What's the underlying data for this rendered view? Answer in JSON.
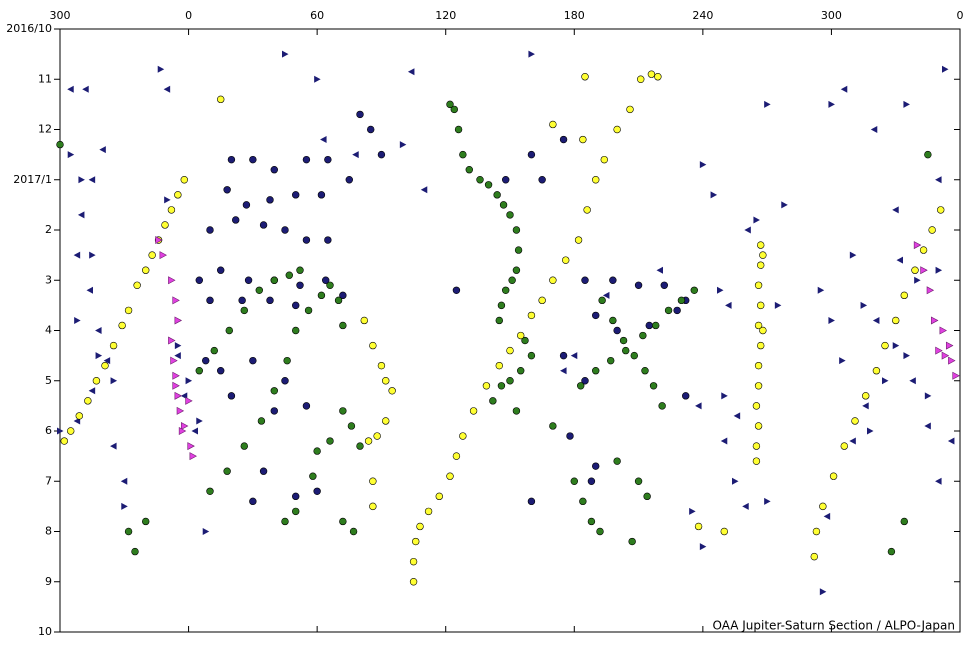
{
  "chart_data": {
    "type": "scatter",
    "annotation": "OAA Jupiter-Saturn Section / ALPO-Japan",
    "xlim": [
      -60,
      360
    ],
    "xticks": [
      {
        "value": -60,
        "label": "300"
      },
      0,
      60,
      120,
      180,
      240,
      300,
      {
        "value": 360,
        "label": "0"
      }
    ],
    "ylim": [
      0,
      12
    ],
    "y_inverted": true,
    "yticks": [
      {
        "value": 0,
        "label": "2016/10"
      },
      {
        "value": 1,
        "label": "11"
      },
      {
        "value": 2,
        "label": "12"
      },
      {
        "value": 3,
        "label": "2017/1"
      },
      {
        "value": 4,
        "label": "2"
      },
      {
        "value": 5,
        "label": "3"
      },
      {
        "value": 6,
        "label": "4"
      },
      {
        "value": 7,
        "label": "5"
      },
      {
        "value": 8,
        "label": "6"
      },
      {
        "value": 9,
        "label": "7"
      },
      {
        "value": 10,
        "label": "8"
      },
      {
        "value": 11,
        "label": "9"
      },
      {
        "value": 12,
        "label": "10"
      }
    ],
    "series": [
      {
        "marker": "triangle-left",
        "color": "#1c1c74",
        "x": [
          -55,
          -48,
          -40,
          -45,
          -50,
          -52,
          -46,
          -42,
          -38,
          -45,
          -52,
          -35,
          -30,
          -10,
          -5,
          -2,
          3,
          63,
          78,
          104,
          110,
          175,
          180,
          195,
          220,
          238,
          252,
          261,
          256,
          250,
          260,
          298,
          310,
          316,
          321,
          330,
          332,
          338,
          345,
          350,
          356,
          350,
          306,
          320
        ],
        "values": [
          1.2,
          1.2,
          2.4,
          3.0,
          3.7,
          4.5,
          5.2,
          6.0,
          6.6,
          7.2,
          7.8,
          8.3,
          9.0,
          1.2,
          6.5,
          7.3,
          8.0,
          2.2,
          2.5,
          0.85,
          3.2,
          6.8,
          6.5,
          5.3,
          4.8,
          7.5,
          5.5,
          4.0,
          7.7,
          8.2,
          9.5,
          9.7,
          8.2,
          7.5,
          5.8,
          3.6,
          4.6,
          7.0,
          7.9,
          9.0,
          8.2,
          3.0,
          1.2,
          2.0
        ]
      },
      {
        "marker": "triangle-right",
        "color": "#1c1c74",
        "x": [
          -55,
          -50,
          -45,
          -52,
          -42,
          -35,
          -60,
          -30,
          -5,
          0,
          5,
          8,
          -10,
          -13,
          45,
          60,
          100,
          160,
          240,
          245,
          248,
          250,
          235,
          240,
          255,
          265,
          270,
          270,
          275,
          278,
          295,
          300,
          305,
          310,
          315,
          318,
          325,
          330,
          335,
          340,
          345,
          350,
          335,
          353,
          300,
          296
        ],
        "values": [
          2.5,
          3.0,
          4.5,
          5.8,
          6.5,
          7.0,
          8.0,
          9.5,
          6.3,
          7.0,
          7.8,
          10.0,
          3.4,
          0.8,
          0.5,
          1.0,
          2.3,
          0.5,
          2.7,
          3.3,
          5.2,
          7.3,
          9.6,
          10.3,
          9.0,
          3.8,
          1.5,
          9.4,
          5.5,
          3.5,
          5.2,
          5.8,
          6.6,
          4.5,
          5.5,
          8.0,
          7.0,
          6.3,
          6.5,
          5.0,
          7.3,
          4.8,
          1.5,
          0.8,
          1.5,
          11.2
        ]
      },
      {
        "marker": "circle",
        "color": "#1c1c74",
        "x": [
          20,
          30,
          40,
          55,
          65,
          75,
          18,
          27,
          38,
          50,
          62,
          10,
          22,
          35,
          45,
          55,
          65,
          5,
          15,
          28,
          40,
          52,
          64,
          72,
          10,
          25,
          38,
          50,
          8,
          15,
          30,
          45,
          20,
          40,
          55,
          35,
          50,
          60,
          30,
          90,
          148,
          160,
          165,
          175,
          185,
          198,
          210,
          222,
          232,
          190,
          200,
          215,
          228,
          175,
          185,
          178,
          190,
          232,
          80,
          85,
          125,
          188,
          160
        ],
        "values": [
          2.6,
          2.6,
          2.8,
          2.6,
          2.6,
          3.0,
          3.2,
          3.5,
          3.4,
          3.3,
          3.3,
          4.0,
          3.8,
          3.9,
          4.0,
          4.2,
          4.2,
          5.0,
          4.8,
          5.0,
          5.0,
          5.1,
          5.0,
          5.3,
          5.4,
          5.4,
          5.4,
          5.5,
          6.6,
          6.8,
          6.6,
          7.0,
          7.3,
          7.6,
          7.5,
          8.8,
          9.3,
          9.2,
          9.4,
          2.5,
          3.0,
          2.5,
          3.0,
          2.2,
          5.0,
          5.0,
          5.1,
          5.1,
          5.4,
          5.7,
          6.0,
          5.9,
          5.6,
          6.5,
          7.0,
          8.1,
          8.7,
          7.3,
          1.7,
          2.0,
          5.2,
          9.0,
          9.4
        ]
      },
      {
        "marker": "circle",
        "color": "#2e7d1e",
        "x": [
          124,
          126,
          128,
          131,
          136,
          140,
          144,
          147,
          150,
          153,
          154,
          153,
          151,
          148,
          146,
          145,
          157,
          160,
          155,
          150,
          146,
          142,
          153,
          170,
          183,
          190,
          197,
          204,
          212,
          218,
          224,
          230,
          236,
          193,
          198,
          203,
          208,
          213,
          217,
          221,
          5,
          12,
          19,
          26,
          33,
          40,
          47,
          52,
          10,
          18,
          26,
          34,
          40,
          46,
          50,
          56,
          62,
          66,
          70,
          72,
          45,
          50,
          58,
          60,
          66,
          72,
          76,
          80,
          77,
          72,
          180,
          184,
          188,
          192,
          200,
          210,
          214,
          207,
          -25,
          -28,
          -20,
          328,
          334,
          -60,
          345,
          122
        ],
        "values": [
          1.6,
          2.0,
          2.5,
          2.8,
          3.0,
          3.1,
          3.3,
          3.5,
          3.7,
          4.0,
          4.4,
          4.8,
          5.0,
          5.2,
          5.5,
          5.8,
          6.2,
          6.5,
          6.8,
          7.0,
          7.1,
          7.4,
          7.6,
          7.9,
          7.1,
          6.8,
          6.6,
          6.4,
          6.1,
          5.9,
          5.6,
          5.4,
          5.2,
          5.4,
          5.8,
          6.2,
          6.5,
          6.8,
          7.1,
          7.5,
          6.8,
          6.4,
          6.0,
          5.6,
          5.2,
          5.0,
          4.9,
          4.8,
          9.2,
          8.8,
          8.3,
          7.8,
          7.2,
          6.6,
          6.0,
          5.6,
          5.3,
          5.1,
          5.4,
          5.9,
          9.8,
          9.6,
          8.9,
          8.4,
          8.2,
          7.6,
          7.9,
          8.3,
          10.0,
          9.8,
          9.0,
          9.4,
          9.8,
          10.0,
          8.6,
          9.0,
          9.3,
          10.2,
          10.4,
          10.0,
          9.8,
          10.4,
          9.8,
          2.3,
          2.5,
          1.5
        ]
      },
      {
        "marker": "circle",
        "color": "#ffff33",
        "x": [
          -2,
          -5,
          -8,
          -11,
          -14,
          -17,
          -20,
          -24,
          -28,
          -31,
          -35,
          -39,
          -43,
          -47,
          -51,
          -55,
          -58,
          351,
          347,
          343,
          339,
          334,
          330,
          325,
          321,
          316,
          311,
          306,
          301,
          296,
          293,
          292,
          105,
          105,
          106,
          108,
          112,
          117,
          122,
          125,
          128,
          133,
          139,
          145,
          150,
          155,
          160,
          165,
          170,
          176,
          182,
          186,
          190,
          194,
          200,
          206,
          211,
          216,
          219,
          267,
          267,
          266,
          267,
          266,
          267,
          266,
          266,
          265,
          266,
          265,
          265,
          268,
          268,
          82,
          86,
          90,
          92,
          95,
          92,
          88,
          84,
          86,
          86,
          15,
          170,
          185,
          184,
          238,
          250
        ],
        "values": [
          3.0,
          3.3,
          3.6,
          3.9,
          4.2,
          4.5,
          4.8,
          5.1,
          5.6,
          5.9,
          6.3,
          6.7,
          7.0,
          7.4,
          7.7,
          8.0,
          8.2,
          3.6,
          4.0,
          4.4,
          4.8,
          5.3,
          5.8,
          6.3,
          6.8,
          7.3,
          7.8,
          8.3,
          8.9,
          9.5,
          10.0,
          10.5,
          11.0,
          10.6,
          10.2,
          9.9,
          9.6,
          9.3,
          8.9,
          8.5,
          8.1,
          7.6,
          7.1,
          6.7,
          6.4,
          6.1,
          5.7,
          5.4,
          5.0,
          4.6,
          4.2,
          3.6,
          3.0,
          2.6,
          2.0,
          1.6,
          1.0,
          0.9,
          0.95,
          4.3,
          4.7,
          5.1,
          5.5,
          5.9,
          6.3,
          6.7,
          7.1,
          7.5,
          7.9,
          8.3,
          8.6,
          4.5,
          6.0,
          5.8,
          6.3,
          6.7,
          7.0,
          7.2,
          7.8,
          8.1,
          8.2,
          9.0,
          9.5,
          1.4,
          1.9,
          0.95,
          2.2,
          9.9,
          10.0
        ]
      },
      {
        "marker": "triangle-right",
        "color": "#e040e0",
        "x": [
          -14,
          -12,
          -8,
          -6,
          -5,
          -8,
          -7,
          -6,
          -5,
          -4,
          -2,
          1,
          2,
          -3,
          -6,
          0,
          340,
          343,
          346,
          348,
          352,
          355,
          350,
          353,
          356,
          358
        ],
        "values": [
          4.2,
          4.5,
          5.0,
          5.4,
          5.8,
          6.2,
          6.6,
          7.1,
          7.3,
          7.6,
          7.9,
          8.3,
          8.5,
          8.0,
          6.9,
          7.4,
          4.3,
          4.8,
          5.2,
          5.8,
          6.0,
          6.3,
          6.4,
          6.5,
          6.6,
          6.9
        ]
      }
    ]
  }
}
